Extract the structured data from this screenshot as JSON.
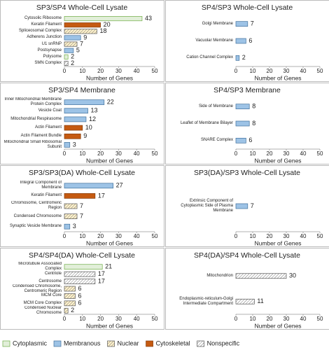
{
  "chart_data": [
    {
      "type": "bar",
      "orientation": "horizontal",
      "title": "SP3/SP4 Whole-Cell Lysate",
      "xlabel": "Number of Genes",
      "categories": [
        "Cytosolic Ribosome",
        "Keratin Filament",
        "Spliceosomal Complex",
        "Adherens Junction",
        "U1 snRNP",
        "Postsynapse",
        "Polysome",
        "SMN Complex"
      ],
      "values": [
        43,
        20,
        18,
        9,
        7,
        5,
        2,
        2
      ],
      "colors": [
        "#e2efd9",
        "#c55a11",
        "#fff2cc",
        "#9dc3e6",
        "#fff2cc",
        "#9dc3e6",
        "#e2efd9",
        "#ffffff"
      ],
      "xlim": [
        0,
        50
      ],
      "xticks": [
        0,
        10,
        20,
        30,
        40,
        50
      ]
    },
    {
      "type": "bar",
      "orientation": "horizontal",
      "title": "SP4/SP3 Whole-Cell Lysate",
      "xlabel": "Number of Genes",
      "categories": [
        "Golgi Membrane",
        "Vacuolar Membrane",
        "Cation Channel Complex"
      ],
      "values": [
        7,
        6,
        2
      ],
      "colors": [
        "#9dc3e6",
        "#9dc3e6",
        "#9dc3e6"
      ],
      "xlim": [
        0,
        50
      ],
      "xticks": [
        0,
        10,
        20,
        30,
        40,
        50
      ]
    },
    {
      "type": "bar",
      "orientation": "horizontal",
      "title": "SP3/SP4 Membrane",
      "xlabel": "Number of Genes",
      "categories": [
        "Inner Mitochondrial Membrane Protein Complex",
        "Vesicle Coat",
        "Mitochondrial Respirasome",
        "Actin Filament",
        "Actin Filament Bundle",
        "Mitochondrial Small Ribosomal Subunit"
      ],
      "values": [
        22,
        13,
        12,
        10,
        9,
        3
      ],
      "colors": [
        "#9dc3e6",
        "#9dc3e6",
        "#9dc3e6",
        "#c55a11",
        "#c55a11",
        "#9dc3e6"
      ],
      "xlim": [
        0,
        50
      ],
      "xticks": [
        0,
        10,
        20,
        30,
        40,
        50
      ]
    },
    {
      "type": "bar",
      "orientation": "horizontal",
      "title": "SP4/SP3 Membrane",
      "xlabel": "Number of Genes",
      "categories": [
        "Side of Membrane",
        "Leaflet of Membrane Bilayer",
        "SNARE Complex"
      ],
      "values": [
        8,
        8,
        6
      ],
      "colors": [
        "#9dc3e6",
        "#9dc3e6",
        "#9dc3e6"
      ],
      "xlim": [
        0,
        50
      ],
      "xticks": [
        0,
        10,
        20,
        30,
        40,
        50
      ]
    },
    {
      "type": "bar",
      "orientation": "horizontal",
      "title": "SP3/SP3(DA) Whole-Cell Lysate",
      "xlabel": "Number of Genes",
      "categories": [
        "Integral Component of Membrane",
        "Keratin Filament",
        "Chromosome, Centromeric Region",
        "Condensed Chromosome",
        "Synaptic Vesicle Membrane"
      ],
      "values": [
        27,
        17,
        7,
        7,
        3
      ],
      "colors": [
        "#9dc3e6",
        "#c55a11",
        "#fff2cc",
        "#fff2cc",
        "#9dc3e6"
      ],
      "xlim": [
        0,
        50
      ],
      "xticks": [
        0,
        10,
        20,
        30,
        40,
        50
      ]
    },
    {
      "type": "bar",
      "orientation": "horizontal",
      "title": "SP3(DA)/SP3 Whole-Cell Lysate",
      "xlabel": "Number of Genes",
      "categories": [
        "Extrinsic Component of Cytoplasmic Side of Plasma Membrane"
      ],
      "values": [
        7
      ],
      "colors": [
        "#9dc3e6"
      ],
      "xlim": [
        0,
        50
      ],
      "xticks": [
        0,
        10,
        20,
        30,
        40,
        50
      ]
    },
    {
      "type": "bar",
      "orientation": "horizontal",
      "title": "SP4/SP4(DA) Whole-Cell Lysate",
      "xlabel": "Number of Genes",
      "categories": [
        "Microtubule Associated Complex",
        "Centriole",
        "Centrosome",
        "Condensed Chromosome, Centromeric Region",
        "MCM Core",
        "MCM Core Complex",
        "Condensed Nuclear Chromosome"
      ],
      "values": [
        21,
        17,
        17,
        6,
        6,
        6,
        2
      ],
      "colors": [
        "#e2efd9",
        "#ffffff",
        "#ffffff",
        "#fff2cc",
        "#fff2cc",
        "#fff2cc",
        "#fff2cc"
      ],
      "xlim": [
        0,
        50
      ],
      "xticks": [
        0,
        10,
        20,
        30,
        40,
        50
      ]
    },
    {
      "type": "bar",
      "orientation": "horizontal",
      "title": "SP4(DA)/SP4 Whole-Cell Lysate",
      "xlabel": "Number of Genes",
      "categories": [
        "Mitochondrion",
        "Endoplasmic-reticulum-Golgi Intermediate Compartment"
      ],
      "values": [
        30,
        11
      ],
      "colors": [
        "#ffffff",
        "#ffffff"
      ],
      "xlim": [
        0,
        50
      ],
      "xticks": [
        0,
        10,
        20,
        30,
        40,
        50
      ]
    }
  ],
  "legend": [
    {
      "name": "Cytoplasmic",
      "color": "#e2efd9",
      "hatch": false
    },
    {
      "name": "Membranous",
      "color": "#9dc3e6",
      "hatch": false
    },
    {
      "name": "Nuclear",
      "color": "#fff2cc",
      "hatch": true
    },
    {
      "name": "Cytoskeletal",
      "color": "#c55a11",
      "hatch": false
    },
    {
      "name": "Nonspecific",
      "color": "#ffffff",
      "hatch": true
    }
  ]
}
